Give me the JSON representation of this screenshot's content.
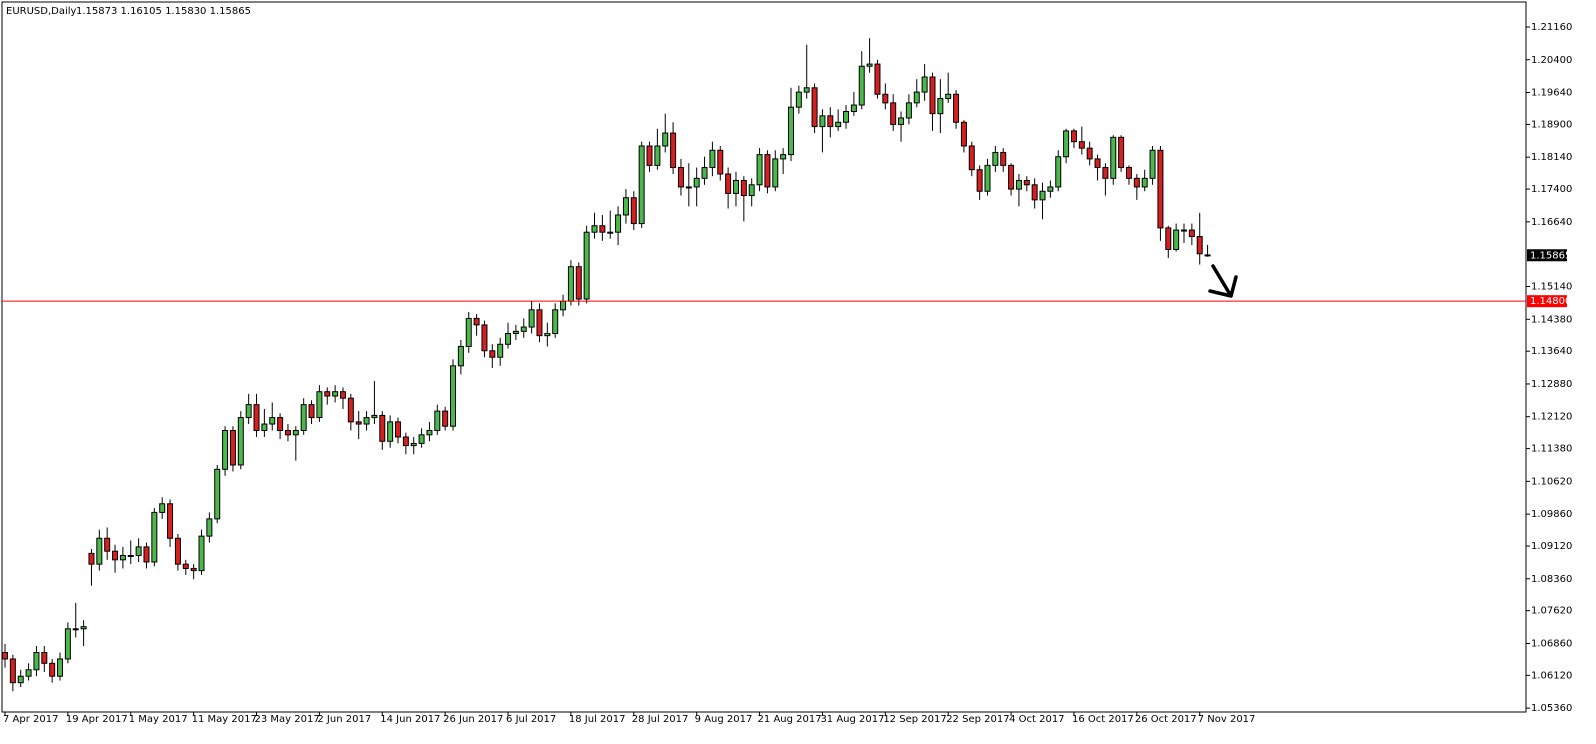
{
  "chart_data": {
    "type": "candlestick",
    "title": "EURUSD,Daily",
    "subtitle": "1.15873 1.16105 1.15830 1.15865",
    "categories": [
      "7 Apr 2017",
      null,
      null,
      null,
      null,
      null,
      null,
      null,
      "19 Apr 2017",
      null,
      null,
      null,
      null,
      null,
      null,
      null,
      "1 May 2017",
      null,
      null,
      null,
      null,
      null,
      null,
      null,
      "11 May 2017",
      null,
      null,
      null,
      null,
      null,
      null,
      null,
      "23 May 2017",
      null,
      null,
      null,
      null,
      null,
      null,
      null,
      "2 Jun 2017",
      null,
      null,
      null,
      null,
      null,
      null,
      null,
      "14 Jun 2017",
      null,
      null,
      null,
      null,
      null,
      null,
      null,
      "26 Jun 2017",
      null,
      null,
      null,
      null,
      null,
      null,
      null,
      "6 Jul 2017",
      null,
      null,
      null,
      null,
      null,
      null,
      null,
      "18 Jul 2017",
      null,
      null,
      null,
      null,
      null,
      null,
      null,
      "28 Jul 2017",
      null,
      null,
      null,
      null,
      null,
      null,
      null,
      "9 Aug 2017",
      null,
      null,
      null,
      null,
      null,
      null,
      null,
      "21 Aug 2017",
      null,
      null,
      null,
      null,
      null,
      null,
      null,
      "31 Aug 2017",
      null,
      null,
      null,
      null,
      null,
      null,
      null,
      "12 Sep 2017",
      null,
      null,
      null,
      null,
      null,
      null,
      null,
      "22 Sep 2017",
      null,
      null,
      null,
      null,
      null,
      null,
      null,
      "4 Oct 2017",
      null,
      null,
      null,
      null,
      null,
      null,
      null,
      "16 Oct 2017",
      null,
      null,
      null,
      null,
      null,
      null,
      null,
      "26 Oct 2017",
      null,
      null,
      null,
      null,
      null,
      null,
      null,
      "7 Nov 2017",
      null
    ],
    "open": [
      1.0665,
      1.065,
      1.0595,
      1.061,
      1.0625,
      1.0665,
      1.064,
      1.061,
      1.065,
      1.072,
      1.072,
      1.0895,
      1.087,
      1.093,
      1.09,
      1.088,
      1.089,
      1.089,
      1.091,
      1.0875,
      1.099,
      1.101,
      1.093,
      1.087,
      1.086,
      1.0855,
      1.0935,
      1.0975,
      1.109,
      1.118,
      1.11,
      1.121,
      1.124,
      1.118,
      1.1195,
      1.121,
      1.118,
      1.117,
      1.118,
      1.124,
      1.121,
      1.127,
      1.126,
      1.127,
      1.1255,
      1.12,
      1.1195,
      1.121,
      1.1215,
      1.1155,
      1.12,
      1.1165,
      1.1145,
      1.115,
      1.117,
      1.118,
      1.1225,
      1.119,
      1.133,
      1.1375,
      1.144,
      1.1425,
      1.1365,
      1.135,
      1.138,
      1.1405,
      1.141,
      1.142,
      1.146,
      1.14,
      1.1405,
      1.146,
      1.148,
      1.156,
      1.1485,
      1.164,
      1.1655,
      1.164,
      1.164,
      1.168,
      1.172,
      1.166,
      1.184,
      1.1795,
      1.184,
      1.187,
      1.179,
      1.1745,
      1.1745,
      1.1765,
      1.179,
      1.183,
      1.1775,
      1.173,
      1.176,
      1.1725,
      1.175,
      1.182,
      1.1745,
      1.181,
      1.182,
      1.193,
      1.1965,
      1.1975,
      1.1885,
      1.191,
      1.1885,
      1.1895,
      1.192,
      1.1935,
      1.2025,
      1.203,
      1.196,
      1.194,
      1.189,
      1.1905,
      1.194,
      1.1965,
      1.2,
      1.1915,
      1.195,
      1.196,
      1.1895,
      1.184,
      1.1785,
      1.1735,
      1.1795,
      1.1825,
      1.1795,
      1.174,
      1.176,
      1.175,
      1.1715,
      1.1735,
      1.1745,
      1.1815,
      1.1875,
      1.185,
      1.1835,
      1.181,
      1.179,
      1.1765,
      1.186,
      1.179,
      1.1765,
      1.1745,
      1.1765,
      1.183,
      1.165,
      1.16,
      1.1645,
      1.1645,
      1.163,
      1.15873
    ],
    "high": [
      1.0685,
      1.066,
      1.0625,
      1.064,
      1.068,
      1.068,
      1.065,
      1.0665,
      1.0735,
      1.078,
      1.074,
      1.0905,
      1.095,
      1.0955,
      1.0915,
      1.091,
      1.0925,
      1.093,
      1.092,
      1.1,
      1.1025,
      1.102,
      1.094,
      1.088,
      1.087,
      1.095,
      1.099,
      1.11,
      1.119,
      1.119,
      1.1225,
      1.1265,
      1.1265,
      1.123,
      1.1245,
      1.122,
      1.1195,
      1.119,
      1.1255,
      1.125,
      1.1285,
      1.128,
      1.1285,
      1.128,
      1.1265,
      1.1225,
      1.1225,
      1.1295,
      1.1225,
      1.1215,
      1.121,
      1.1175,
      1.1165,
      1.1185,
      1.12,
      1.124,
      1.1235,
      1.1345,
      1.139,
      1.1455,
      1.145,
      1.1435,
      1.138,
      1.1395,
      1.143,
      1.1425,
      1.144,
      1.148,
      1.1475,
      1.143,
      1.1475,
      1.1495,
      1.1575,
      1.157,
      1.1655,
      1.1685,
      1.168,
      1.169,
      1.17,
      1.174,
      1.1735,
      1.185,
      1.185,
      1.188,
      1.1915,
      1.1895,
      1.181,
      1.18,
      1.179,
      1.1815,
      1.185,
      1.184,
      1.179,
      1.178,
      1.177,
      1.1765,
      1.1835,
      1.183,
      1.183,
      1.1835,
      1.1975,
      1.198,
      1.2075,
      1.1985,
      1.1925,
      1.193,
      1.1925,
      1.1935,
      1.1965,
      1.206,
      1.209,
      1.204,
      1.1985,
      1.196,
      1.192,
      1.196,
      1.1995,
      1.203,
      1.201,
      1.1995,
      1.201,
      1.197,
      1.19,
      1.185,
      1.1795,
      1.181,
      1.184,
      1.1835,
      1.18,
      1.1775,
      1.177,
      1.1765,
      1.1755,
      1.176,
      1.183,
      1.188,
      1.188,
      1.1885,
      1.185,
      1.182,
      1.18,
      1.1865,
      1.1865,
      1.1795,
      1.1775,
      1.1785,
      1.184,
      1.184,
      1.1655,
      1.166,
      1.166,
      1.166,
      1.1685,
      1.16105
    ],
    "low": [
      1.063,
      1.0575,
      1.0585,
      1.06,
      1.061,
      1.062,
      1.0595,
      1.06,
      1.064,
      1.07,
      1.068,
      1.082,
      1.0855,
      1.088,
      1.085,
      1.086,
      1.087,
      1.0875,
      1.086,
      1.0865,
      1.0975,
      1.091,
      1.0855,
      1.0845,
      1.0835,
      1.0845,
      1.092,
      1.0965,
      1.1075,
      1.1085,
      1.109,
      1.1195,
      1.1165,
      1.1165,
      1.118,
      1.116,
      1.1155,
      1.111,
      1.117,
      1.1195,
      1.12,
      1.124,
      1.1245,
      1.123,
      1.118,
      1.116,
      1.118,
      1.1195,
      1.1135,
      1.114,
      1.115,
      1.1125,
      1.1125,
      1.114,
      1.1155,
      1.117,
      1.118,
      1.118,
      1.131,
      1.136,
      1.14,
      1.135,
      1.1325,
      1.133,
      1.137,
      1.139,
      1.1395,
      1.1405,
      1.1385,
      1.1375,
      1.1395,
      1.1445,
      1.147,
      1.147,
      1.1475,
      1.1625,
      1.162,
      1.1625,
      1.161,
      1.166,
      1.1645,
      1.165,
      1.178,
      1.1785,
      1.1825,
      1.1775,
      1.1725,
      1.17,
      1.17,
      1.175,
      1.177,
      1.176,
      1.1695,
      1.17,
      1.1665,
      1.17,
      1.1735,
      1.173,
      1.1735,
      1.1775,
      1.1805,
      1.1915,
      1.195,
      1.187,
      1.1825,
      1.186,
      1.1875,
      1.188,
      1.191,
      1.1925,
      1.201,
      1.195,
      1.1925,
      1.1875,
      1.185,
      1.189,
      1.193,
      1.1945,
      1.1875,
      1.187,
      1.194,
      1.188,
      1.1825,
      1.177,
      1.1715,
      1.1725,
      1.178,
      1.178,
      1.1725,
      1.17,
      1.1735,
      1.1695,
      1.167,
      1.172,
      1.1735,
      1.18,
      1.1835,
      1.182,
      1.1795,
      1.176,
      1.1725,
      1.175,
      1.178,
      1.175,
      1.1715,
      1.1735,
      1.175,
      1.162,
      1.158,
      1.1595,
      1.1615,
      1.161,
      1.1565,
      1.1583
    ],
    "close": [
      1.065,
      1.0595,
      1.061,
      1.0625,
      1.0665,
      1.064,
      1.061,
      1.065,
      1.072,
      1.072,
      1.0725,
      1.087,
      1.093,
      1.09,
      1.088,
      1.089,
      1.089,
      1.091,
      1.0875,
      1.099,
      1.101,
      1.093,
      1.087,
      1.086,
      1.0855,
      1.0935,
      1.0975,
      1.109,
      1.118,
      1.11,
      1.121,
      1.124,
      1.118,
      1.1195,
      1.121,
      1.118,
      1.117,
      1.118,
      1.124,
      1.121,
      1.127,
      1.126,
      1.127,
      1.1255,
      1.12,
      1.1195,
      1.121,
      1.1215,
      1.1155,
      1.12,
      1.1165,
      1.1145,
      1.115,
      1.117,
      1.118,
      1.1225,
      1.119,
      1.133,
      1.1375,
      1.144,
      1.1425,
      1.1365,
      1.135,
      1.138,
      1.1405,
      1.141,
      1.142,
      1.146,
      1.14,
      1.1405,
      1.146,
      1.148,
      1.156,
      1.1485,
      1.164,
      1.1655,
      1.164,
      1.164,
      1.168,
      1.172,
      1.166,
      1.184,
      1.1795,
      1.184,
      1.187,
      1.179,
      1.1745,
      1.1745,
      1.1765,
      1.179,
      1.183,
      1.1775,
      1.173,
      1.176,
      1.1725,
      1.175,
      1.182,
      1.1745,
      1.181,
      1.182,
      1.193,
      1.1965,
      1.1975,
      1.1885,
      1.191,
      1.1885,
      1.1895,
      1.192,
      1.1935,
      1.2025,
      1.203,
      1.196,
      1.194,
      1.189,
      1.1905,
      1.194,
      1.1965,
      1.2,
      1.1915,
      1.195,
      1.196,
      1.1895,
      1.184,
      1.1785,
      1.1735,
      1.1795,
      1.1825,
      1.1795,
      1.174,
      1.176,
      1.175,
      1.1715,
      1.1735,
      1.1745,
      1.1815,
      1.1875,
      1.185,
      1.1835,
      1.181,
      1.179,
      1.1765,
      1.186,
      1.179,
      1.1765,
      1.1745,
      1.1765,
      1.183,
      1.165,
      1.16,
      1.1645,
      1.1645,
      1.163,
      1.159,
      1.15865
    ],
    "up_color": "#4cb84c",
    "down_color": "#d42020",
    "outline_color": "#000000",
    "ylim": [
      1.0527,
      1.2174
    ],
    "yticks": [
      {
        "value": 1.2116,
        "label": "1.21160"
      },
      {
        "value": 1.204,
        "label": "1.20400"
      },
      {
        "value": 1.1964,
        "label": "1.19640"
      },
      {
        "value": 1.189,
        "label": "1.18900"
      },
      {
        "value": 1.1814,
        "label": "1.18140"
      },
      {
        "value": 1.174,
        "label": "1.17400"
      },
      {
        "value": 1.1664,
        "label": "1.16640"
      },
      {
        "value": 1.1514,
        "label": "1.15140"
      },
      {
        "value": 1.1438,
        "label": "1.14380"
      },
      {
        "value": 1.1364,
        "label": "1.13640"
      },
      {
        "value": 1.1288,
        "label": "1.12880"
      },
      {
        "value": 1.1212,
        "label": "1.12120"
      },
      {
        "value": 1.1138,
        "label": "1.11380"
      },
      {
        "value": 1.1062,
        "label": "1.10620"
      },
      {
        "value": 1.0986,
        "label": "1.09860"
      },
      {
        "value": 1.0912,
        "label": "1.09120"
      },
      {
        "value": 1.0836,
        "label": "1.08360"
      },
      {
        "value": 1.0762,
        "label": "1.07620"
      },
      {
        "value": 1.0686,
        "label": "1.06860"
      },
      {
        "value": 1.0612,
        "label": "1.06120"
      },
      {
        "value": 1.0536,
        "label": "1.05360"
      }
    ],
    "horizontal_line": {
      "value": 1.148,
      "label": "1.14800",
      "color": "#ff0000"
    }
  }
}
